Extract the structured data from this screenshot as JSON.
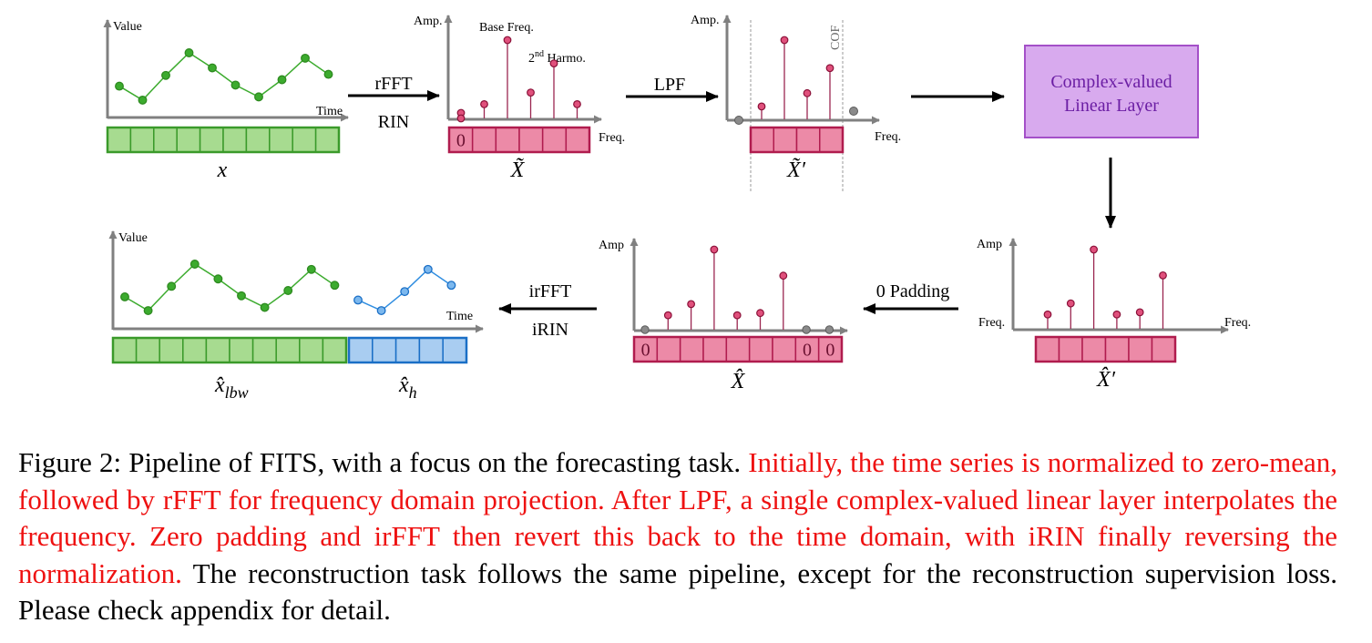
{
  "colors": {
    "green": "#3cab2e",
    "green_fill": "#a7db90",
    "green_stroke": "#3a9a2a",
    "pink": "#e05d86",
    "pink_fill": "#ec8aa7",
    "pink_stroke": "#b01c4e",
    "blue": "#2f8de0",
    "blue_fill": "#a9cdf1",
    "blue_stroke": "#1a6fc6",
    "purple_fill": "#d8aaee",
    "purple_stroke": "#a450c8",
    "purple_text": "#6b1ea4",
    "grey": "#808080"
  },
  "top_row": {
    "input_plot": {
      "y_axis_label": "Value",
      "x_axis_label": "Time",
      "series": [
        0.38,
        0.12,
        0.58,
        1.0,
        0.72,
        0.4,
        0.18,
        0.5,
        0.9,
        0.6
      ],
      "buffer_cells": 10,
      "symbol": "x"
    },
    "arrow_1": {
      "top_label": "rFFT",
      "bottom_label": "RIN"
    },
    "spectrum_plot": {
      "y_axis_label": "Amp.",
      "x_axis_label": "Freq.",
      "annot_base": "Base Freq.",
      "annot_harmo_prefix": "2",
      "annot_harmo_sup": "nd",
      "annot_harmo_suffix": " Harmo.",
      "amplitudes": [
        0,
        0.12,
        1.0,
        0.28,
        0.68,
        0.12
      ],
      "buffer_first": "0",
      "buffer_cells": 6,
      "symbol": "X̃"
    },
    "arrow_2": {
      "label": "LPF"
    },
    "lpf_plot": {
      "y_axis_label": "Amp.",
      "x_axis_label": "Freq.",
      "cof_label": "COF",
      "amplitudes": [
        0.1,
        1.0,
        0.28,
        0.62
      ],
      "buffer_cells": 4,
      "symbol": "X̃′"
    },
    "linear_layer": {
      "line1": "Complex-valued",
      "line2": "Linear Layer"
    }
  },
  "bottom_row": {
    "output_plot": {
      "y_axis_label": "Value",
      "x_axis_label": "Time",
      "lookback_series": [
        0.38,
        0.12,
        0.58,
        1.0,
        0.72,
        0.4,
        0.18,
        0.5,
        0.9,
        0.6
      ],
      "horizon_series": [
        0.32,
        0.12,
        0.48,
        0.9,
        0.6
      ],
      "lookback_cells": 10,
      "horizon_cells": 5,
      "symbol_lookback": "x̂",
      "symbol_lookback_sub": "lbw",
      "symbol_horizon": "x̂",
      "symbol_horizon_sub": "h"
    },
    "arrow_4": {
      "top_label": "irFFT",
      "bottom_label": "iRIN"
    },
    "padded_plot": {
      "y_axis_label": "Amp",
      "x_axis_label": "",
      "amplitudes": [
        0,
        0.12,
        0.27,
        1.0,
        0.12,
        0.15,
        0.65,
        0,
        0
      ],
      "buffer_cells": [
        "0",
        "",
        "",
        "",
        "",
        "",
        "",
        "0",
        "0"
      ],
      "symbol": "X̂"
    },
    "arrow_5": {
      "label": "0 Padding"
    },
    "interp_plot": {
      "y_axis_label": "Amp",
      "x_axis_label": "Freq.",
      "left_label": "Freq.",
      "amplitudes": [
        0.12,
        0.27,
        1.0,
        0.12,
        0.15,
        0.65
      ],
      "buffer_cells": 6,
      "symbol": "X̂′"
    }
  },
  "caption": {
    "prefix": "Figure 2: Pipeline of FITS, with a focus on the forecasting task. ",
    "highlight": "Initially, the time series is normalized to zero-mean, followed by rFFT for frequency domain projection. After LPF, a single complex-valued linear layer interpolates the frequency. Zero padding and irFFT then revert this back to the time domain, with iRIN finally reversing the normalization.",
    "suffix": " The reconstruction task follows the same pipeline, except for the reconstruction supervision loss. Please check appendix for detail."
  }
}
